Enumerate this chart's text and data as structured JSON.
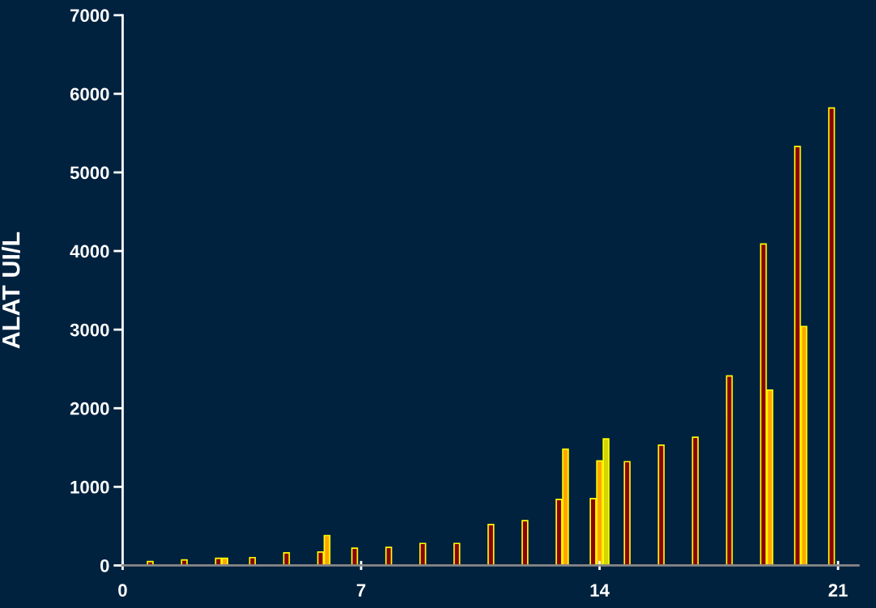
{
  "chart_data": {
    "type": "bar",
    "ylabel": "ALAT UI/L",
    "xlim": [
      0,
      21.6
    ],
    "xticks": [
      0,
      7,
      14,
      21
    ],
    "ylim": [
      0,
      7000
    ],
    "yticks": [
      0,
      1000,
      2000,
      3000,
      4000,
      5000,
      6000,
      7000
    ],
    "grid": false,
    "legend": false,
    "series": [
      {
        "color": "#8b0000",
        "x": [
          1,
          2,
          3,
          4,
          5,
          6,
          7,
          8,
          9,
          10,
          11,
          12,
          13,
          14,
          15,
          16,
          17,
          18,
          19,
          20,
          21
        ],
        "values": [
          50,
          70,
          90,
          100,
          160,
          170,
          220,
          230,
          280,
          280,
          520,
          570,
          840,
          850,
          1320,
          1530,
          1630,
          2410,
          4090,
          5330,
          5820
        ]
      },
      {
        "color": "#ffa500",
        "x": [
          3,
          6,
          13,
          14,
          19,
          20
        ],
        "values": [
          90,
          380,
          1480,
          1330,
          2230,
          3040
        ]
      },
      {
        "color": "#d4d400",
        "x": [
          14
        ],
        "values": [
          1610
        ]
      }
    ]
  }
}
